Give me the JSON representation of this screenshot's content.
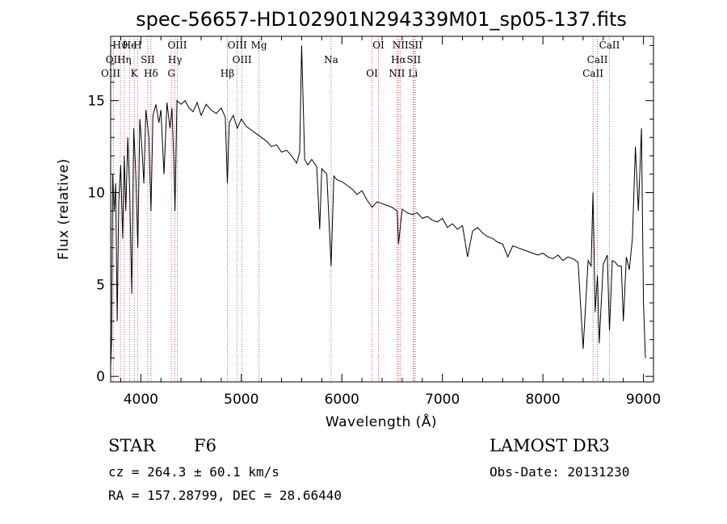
{
  "chart_data": {
    "type": "line",
    "title": "spec-56657-HD102901N294339M01_sp05-137.fits",
    "xlabel": "Wavelength (Å)",
    "ylabel": "Flux (relative)",
    "xlim": [
      3700,
      9100
    ],
    "ylim": [
      -0.3,
      18.5
    ],
    "xticks": [
      4000,
      5000,
      6000,
      7000,
      8000,
      9000
    ],
    "yticks": [
      0,
      5,
      10,
      15
    ],
    "series_color": "#000000",
    "line_marker_color": "#c0392b",
    "series": [
      {
        "x": [
          3700,
          3710,
          3720,
          3735,
          3750,
          3765,
          3780,
          3800,
          3820,
          3835,
          3850,
          3870,
          3890,
          3910,
          3930,
          3950,
          3970,
          3990,
          4010,
          4030,
          4050,
          4080,
          4101,
          4120,
          4150,
          4180,
          4200,
          4230,
          4260,
          4290,
          4310,
          4330,
          4340,
          4360,
          4400,
          4440,
          4480,
          4520,
          4560,
          4600,
          4650,
          4700,
          4750,
          4800,
          4840,
          4861,
          4880,
          4920,
          4960,
          5000,
          5050,
          5100,
          5150,
          5200,
          5250,
          5300,
          5350,
          5400,
          5450,
          5500,
          5550,
          5580,
          5600,
          5630,
          5660,
          5700,
          5750,
          5780,
          5800,
          5850,
          5893,
          5920,
          5950,
          6000,
          6050,
          6100,
          6150,
          6200,
          6250,
          6300,
          6350,
          6400,
          6450,
          6500,
          6550,
          6563,
          6600,
          6650,
          6700,
          6750,
          6800,
          6850,
          6900,
          6950,
          7000,
          7050,
          7100,
          7150,
          7200,
          7250,
          7300,
          7350,
          7400,
          7450,
          7500,
          7550,
          7600,
          7650,
          7700,
          7750,
          7800,
          7850,
          7900,
          7950,
          8000,
          8050,
          8100,
          8150,
          8200,
          8250,
          8300,
          8350,
          8400,
          8450,
          8480,
          8498,
          8520,
          8542,
          8560,
          8600,
          8640,
          8662,
          8690,
          8720,
          8750,
          8780,
          8800,
          8830,
          8860,
          8890,
          8920,
          8950,
          8980,
          9000,
          9020
        ],
        "y": [
          0.5,
          2.0,
          11.0,
          9.0,
          10.5,
          3.0,
          9.5,
          11.5,
          7.5,
          12.0,
          9.0,
          13.0,
          10.0,
          4.5,
          13.5,
          11.0,
          7.0,
          14.0,
          12.5,
          10.5,
          14.5,
          13.0,
          9.0,
          14.2,
          14.8,
          13.8,
          14.5,
          11.0,
          14.9,
          13.5,
          14.6,
          11.5,
          9.0,
          15.0,
          14.8,
          15.0,
          14.6,
          14.4,
          14.9,
          14.2,
          14.8,
          14.5,
          14.3,
          14.6,
          14.1,
          10.5,
          13.8,
          14.2,
          13.5,
          14.0,
          13.6,
          13.4,
          13.2,
          13.0,
          12.8,
          12.5,
          12.6,
          12.2,
          12.3,
          12.0,
          11.6,
          12.2,
          18.0,
          11.8,
          11.5,
          11.8,
          11.4,
          8.0,
          11.3,
          11.0,
          6.0,
          10.9,
          10.7,
          10.6,
          10.4,
          10.2,
          9.9,
          10.1,
          9.6,
          9.2,
          9.5,
          9.4,
          9.3,
          9.2,
          9.0,
          7.2,
          9.1,
          8.9,
          8.8,
          8.9,
          8.6,
          8.7,
          8.5,
          8.4,
          8.6,
          8.1,
          8.3,
          8.0,
          8.2,
          6.5,
          7.9,
          8.1,
          7.8,
          7.6,
          7.5,
          7.3,
          7.2,
          6.5,
          7.1,
          7.0,
          6.9,
          6.8,
          6.7,
          6.6,
          6.7,
          6.5,
          6.4,
          6.6,
          6.3,
          6.5,
          6.4,
          6.2,
          1.5,
          6.3,
          6.0,
          10.0,
          3.5,
          5.5,
          1.8,
          6.1,
          6.6,
          2.5,
          6.3,
          6.2,
          6.0,
          6.0,
          3.0,
          6.5,
          5.8,
          7.5,
          12.5,
          9.0,
          13.5,
          4.0,
          1.0
        ]
      }
    ],
    "line_labels": [
      {
        "text": "Hϑ",
        "x": 3797
      },
      {
        "text": "OII",
        "x": 3727
      },
      {
        "text": "OIII",
        "x": 3700
      },
      {
        "text": "He",
        "x": 3889
      },
      {
        "text": "Hη",
        "x": 3835
      },
      {
        "text": "K",
        "x": 3934
      },
      {
        "text": "H",
        "x": 3968
      },
      {
        "text": "SII",
        "x": 4069
      },
      {
        "text": "Hδ",
        "x": 4101
      },
      {
        "text": "OIII",
        "x": 4363
      },
      {
        "text": "Hγ",
        "x": 4340
      },
      {
        "text": "G",
        "x": 4304
      },
      {
        "text": "OIII",
        "x": 4959
      },
      {
        "text": "OIII",
        "x": 5007
      },
      {
        "text": "Hβ",
        "x": 4861
      },
      {
        "text": "Mg",
        "x": 5175
      },
      {
        "text": "Na",
        "x": 5893
      },
      {
        "text": "OI",
        "x": 6300
      },
      {
        "text": "OI",
        "x": 6364
      },
      {
        "text": "Hα",
        "x": 6563
      },
      {
        "text": "NII",
        "x": 6548
      },
      {
        "text": "NII",
        "x": 6583
      },
      {
        "text": "SII",
        "x": 6716
      },
      {
        "text": "Li",
        "x": 6708
      },
      {
        "text": "SII",
        "x": 6731
      },
      {
        "text": "CaII",
        "x": 8542
      },
      {
        "text": "CaII",
        "x": 8498
      },
      {
        "text": "CaII",
        "x": 8662
      }
    ]
  },
  "info": {
    "class": "STAR",
    "subclass": "F6",
    "cz": "cz = 264.3 ± 60.1 km/s",
    "radec": "RA = 157.28799, DEC =  28.66440",
    "survey": "LAMOST DR3",
    "obsdate": "Obs-Date: 20131230"
  }
}
